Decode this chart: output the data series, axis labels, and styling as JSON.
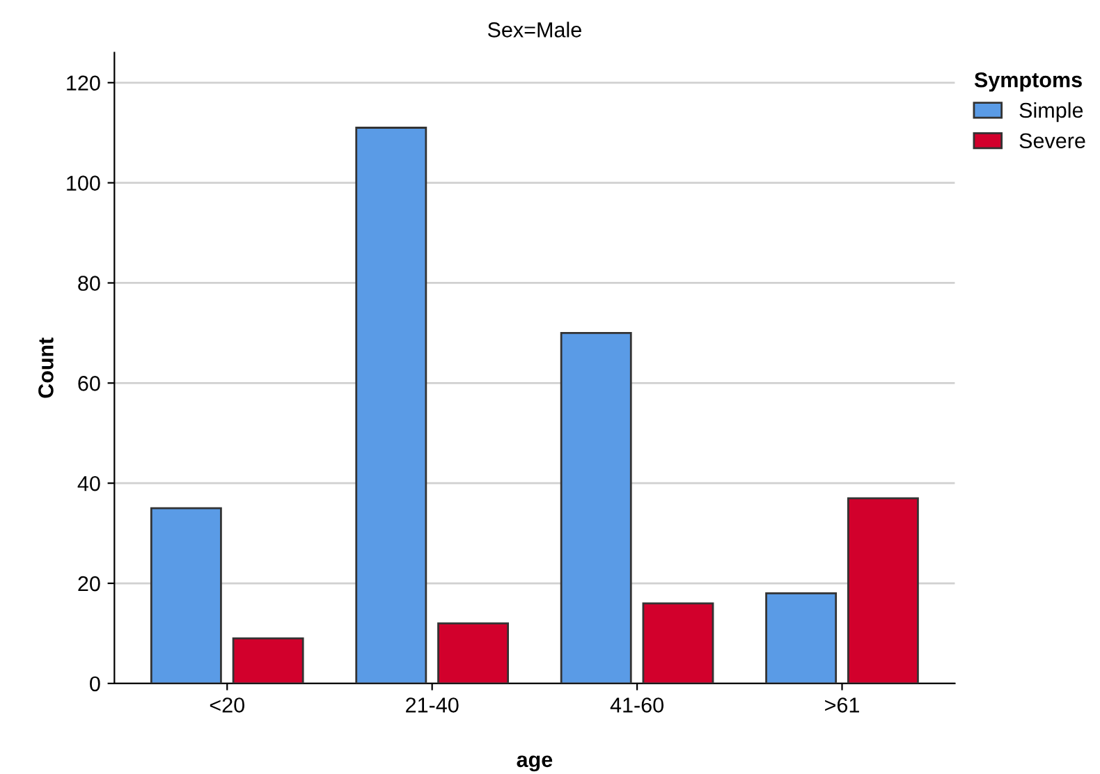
{
  "chart_data": {
    "type": "bar",
    "title": "Sex=Male",
    "xlabel": "age",
    "ylabel": "Count",
    "legend_title": "Symptoms",
    "categories": [
      "<20",
      "21-40",
      "41-60",
      ">61"
    ],
    "series": [
      {
        "name": "Simple",
        "color": "#5a9be6",
        "values": [
          35,
          111,
          70,
          18
        ]
      },
      {
        "name": "Severe",
        "color": "#d2002c",
        "values": [
          9,
          12,
          16,
          37
        ]
      }
    ],
    "ylim": [
      0,
      126
    ],
    "yticks": [
      0,
      20,
      40,
      60,
      80,
      100,
      120
    ],
    "grid": "y",
    "legend": "top right"
  }
}
